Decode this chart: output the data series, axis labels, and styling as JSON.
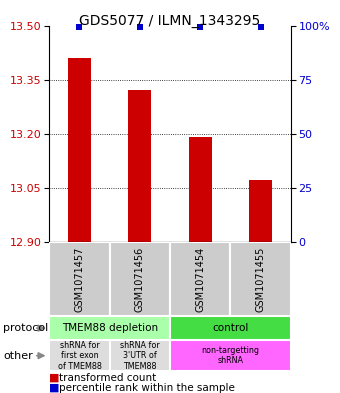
{
  "title": "GDS5077 / ILMN_1343295",
  "samples": [
    "GSM1071457",
    "GSM1071456",
    "GSM1071454",
    "GSM1071455"
  ],
  "bar_values": [
    13.41,
    13.32,
    13.19,
    13.07
  ],
  "percentile_values": [
    100,
    100,
    100,
    100
  ],
  "ylim": [
    12.9,
    13.5
  ],
  "yticks": [
    12.9,
    13.05,
    13.2,
    13.35,
    13.5
  ],
  "right_yticks": [
    0,
    25,
    50,
    75,
    100
  ],
  "bar_color": "#cc0000",
  "percentile_color": "#0000cc",
  "bar_width": 0.38,
  "protocol_labels": [
    "TMEM88 depletion",
    "control"
  ],
  "protocol_colors": [
    "#aaffaa",
    "#44dd44"
  ],
  "other_labels": [
    "shRNA for\nfirst exon\nof TMEM88",
    "shRNA for\n3'UTR of\nTMEM88",
    "non-targetting\nshRNA"
  ],
  "other_colors": [
    "#dddddd",
    "#dddddd",
    "#ff66ff"
  ],
  "legend_red_label": "transformed count",
  "legend_blue_label": "percentile rank within the sample",
  "left_label_color": "#cc0000",
  "right_label_color": "#0000cc",
  "background_color": "#ffffff",
  "title_fontsize": 10,
  "tick_fontsize": 8,
  "sample_fontsize": 7,
  "annot_fontsize": 7.5,
  "legend_fontsize": 7.5
}
